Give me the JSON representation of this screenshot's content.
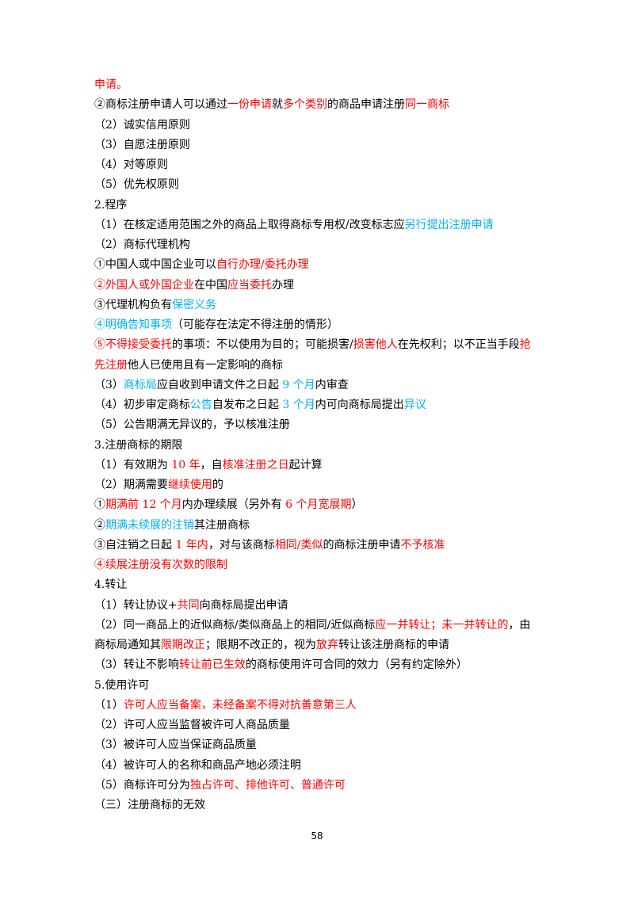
{
  "lines": [
    [
      {
        "text": "申请。",
        "color": "#ff0000"
      }
    ],
    [
      {
        "text": "②商标注册申请人可以通过"
      },
      {
        "text": "一份申请",
        "color": "#ff0000"
      },
      {
        "text": "就"
      },
      {
        "text": "多个类别",
        "color": "#ff0000"
      },
      {
        "text": "的商品申请注册"
      },
      {
        "text": "同一商标",
        "color": "#ff0000"
      }
    ],
    [
      {
        "text": "（2）诚实信用原则"
      }
    ],
    [
      {
        "text": "（3）自愿注册原则"
      }
    ],
    [
      {
        "text": "（4）对等原则"
      }
    ],
    [
      {
        "text": "（5）优先权原则"
      }
    ],
    [
      {
        "text": "2.程序"
      }
    ],
    [
      {
        "text": "（1）在核定适用范围之外的商品上取得商标专用权/改变标志应"
      },
      {
        "text": "另行提出注册申请",
        "color": "#00b0f0"
      }
    ],
    [
      {
        "text": "（2）商标代理机构"
      }
    ],
    [
      {
        "text": "①中国人或中国企业可以"
      },
      {
        "text": "自行办理/委托办理",
        "color": "#ff0000"
      }
    ],
    [
      {
        "text": "②外国人或外国企业",
        "color": "#ff0000"
      },
      {
        "text": "在中国"
      },
      {
        "text": "应当委托",
        "color": "#ff0000"
      },
      {
        "text": "办理"
      }
    ],
    [
      {
        "text": "③代理机构负有"
      },
      {
        "text": "保密义务",
        "color": "#00b0f0"
      }
    ],
    [
      {
        "text": "④明确告知事项",
        "color": "#00b0f0"
      },
      {
        "text": "（可能存在法定不得注册的情形）"
      }
    ],
    [
      {
        "text": "⑤不得接受委托",
        "color": "#ff0000"
      },
      {
        "text": "的事项：不以使用为目的；可能损害/"
      },
      {
        "text": "损害他人",
        "color": "#ff0000"
      },
      {
        "text": "在先权利；以不正当手段"
      },
      {
        "text": "抢",
        "color": "#ff0000"
      }
    ],
    [
      {
        "text": "先注册",
        "color": "#ff0000"
      },
      {
        "text": "他人已使用且有一定影响的商标"
      }
    ],
    [
      {
        "text": "（3）"
      },
      {
        "text": "商标局",
        "color": "#00b0f0"
      },
      {
        "text": "应自收到申请文件之日起 "
      },
      {
        "text": "9 个月",
        "color": "#00b0f0"
      },
      {
        "text": "内审查"
      }
    ],
    [
      {
        "text": "（4）初步审定商标"
      },
      {
        "text": "公告",
        "color": "#00b0f0"
      },
      {
        "text": "自发布之日起 "
      },
      {
        "text": "3 个月",
        "color": "#00b0f0"
      },
      {
        "text": "内可向商标局提出"
      },
      {
        "text": "异议",
        "color": "#00b0f0"
      }
    ],
    [
      {
        "text": "（5）公告期满无异议的，予以核准注册"
      }
    ],
    [
      {
        "text": "3.注册商标的期限"
      }
    ],
    [
      {
        "text": "（1）有效期为 "
      },
      {
        "text": "10 年",
        "color": "#ff0000"
      },
      {
        "text": "，自"
      },
      {
        "text": "核准注册之日",
        "color": "#ff0000"
      },
      {
        "text": "起计算"
      }
    ],
    [
      {
        "text": "（2）期满需要"
      },
      {
        "text": "继续使用",
        "color": "#ff0000"
      },
      {
        "text": "的"
      }
    ],
    [
      {
        "text": "①"
      },
      {
        "text": "期满前 12 个月",
        "color": "#ff0000"
      },
      {
        "text": "内办理续展（另外有 "
      },
      {
        "text": "6 个月宽展期",
        "color": "#ff0000"
      },
      {
        "text": "）"
      }
    ],
    [
      {
        "text": "②"
      },
      {
        "text": "期满未续展的注销",
        "color": "#00b0f0"
      },
      {
        "text": "其注册商标"
      }
    ],
    [
      {
        "text": "③自注销之日起 "
      },
      {
        "text": "1 年内",
        "color": "#ff0000"
      },
      {
        "text": "，对与该商标"
      },
      {
        "text": "相同/类似",
        "color": "#ff0000"
      },
      {
        "text": "的商标注册申请"
      },
      {
        "text": "不予核准",
        "color": "#ff0000"
      }
    ],
    [
      {
        "text": "④续展注册没有次数的限制",
        "color": "#ff0000"
      }
    ],
    [
      {
        "text": "4.转让"
      }
    ],
    [
      {
        "text": "（1）转让协议+"
      },
      {
        "text": "共同",
        "color": "#ff0000"
      },
      {
        "text": "向商标局提出申请"
      }
    ],
    [
      {
        "text": "（2）同一商品上的近似商标/类似商品上的相同/近似商标"
      },
      {
        "text": "应一并转让；未一并转让的",
        "color": "#ff0000"
      },
      {
        "text": "，由"
      }
    ],
    [
      {
        "text": "商标局通知其"
      },
      {
        "text": "限期改正",
        "color": "#ff0000"
      },
      {
        "text": "；限期不改正的，视为"
      },
      {
        "text": "放弃",
        "color": "#ff0000"
      },
      {
        "text": "转让该注册商标的申请"
      }
    ],
    [
      {
        "text": "（3）转让不影响"
      },
      {
        "text": "转让前已生效",
        "color": "#ff0000"
      },
      {
        "text": "的商标使用许可合同的效力（另有约定除外）"
      }
    ],
    [
      {
        "text": "5.使用许可"
      }
    ],
    [
      {
        "text": "（1）"
      },
      {
        "text": "许可人应当备案，未经备案不得对抗善意第三人",
        "color": "#ff0000"
      }
    ],
    [
      {
        "text": "（2）许可人应当监督被许可人商品质量"
      }
    ],
    [
      {
        "text": "（3）被许可人应当保证商品质量"
      }
    ],
    [
      {
        "text": "（4）被许可人的名称和商品产地必须注明"
      }
    ],
    [
      {
        "text": "（5）商标许可分为"
      },
      {
        "text": "独占许可、排他许可、普通许可",
        "color": "#ff0000"
      }
    ],
    [
      {
        "text": "（三）注册商标的无效"
      }
    ]
  ],
  "page_number": "58"
}
